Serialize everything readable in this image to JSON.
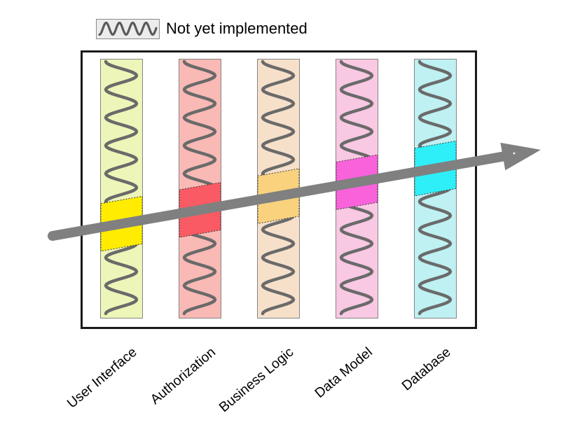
{
  "legend": {
    "label": "Not yet implemented",
    "swatch_bg": "#ececec",
    "swatch_wave_color": "#5a5a5a"
  },
  "columns": [
    {
      "id": "user-interface",
      "label": "User Interface",
      "fill": "#edf5b8",
      "highlight": "#ffec00"
    },
    {
      "id": "authorization",
      "label": "Authorization",
      "fill": "#f9b9b5",
      "highlight": "#f95a63"
    },
    {
      "id": "business-logic",
      "label": "Business Logic",
      "fill": "#f7e0ca",
      "highlight": "#fad27e"
    },
    {
      "id": "data-model",
      "label": "Data Model",
      "fill": "#f9c8e2",
      "highlight": "#fa62dc"
    },
    {
      "id": "database",
      "label": "Database",
      "fill": "#bff0f2",
      "highlight": "#2eeff8"
    }
  ],
  "arrow": {
    "color": "#808080"
  },
  "wave": {
    "color": "#6a6a6a"
  },
  "frame": {
    "border_color": "#1a1a1a"
  },
  "highlight_border_color": "#3a3a3a"
}
